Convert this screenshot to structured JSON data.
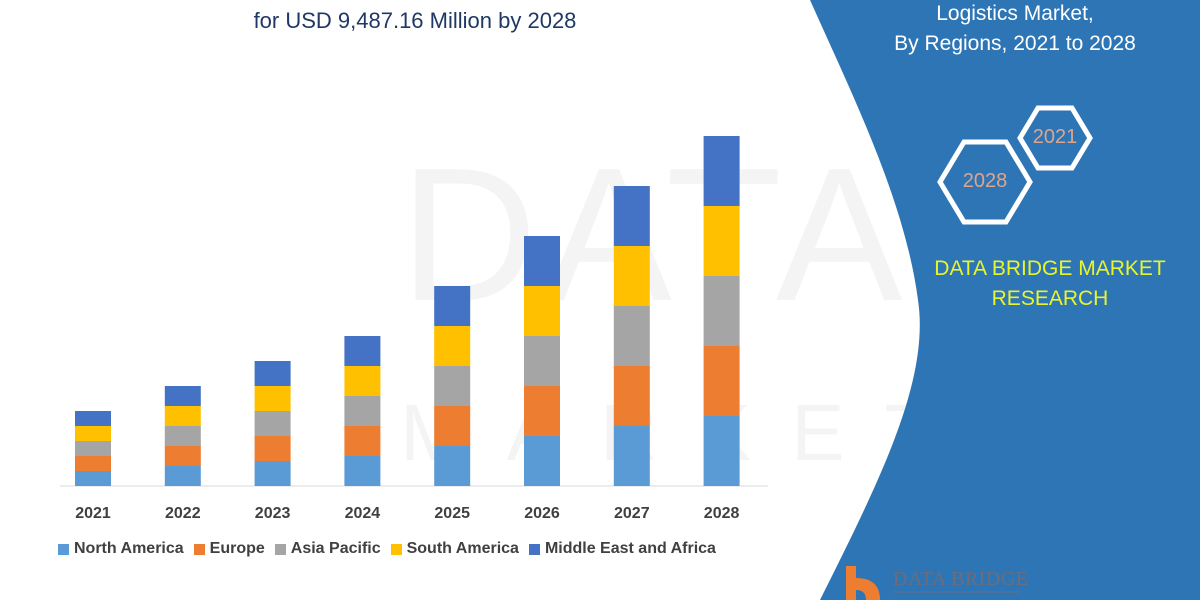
{
  "header": {
    "title_line2": "for USD 9,487.16 Million by 2028"
  },
  "side_panel": {
    "title_line1": "Logistics Market,",
    "title_line2": "By Regions, 2021 to 2028",
    "hex_1": "2021",
    "hex_2": "2028",
    "brand_line1": "DATA BRIDGE MARKET",
    "brand_line2": "RESEARCH",
    "logo_text": "DATA BRIDGE",
    "panel_color": "#2E75B6"
  },
  "chart_data": {
    "type": "bar",
    "stacked": true,
    "categories": [
      "2021",
      "2022",
      "2023",
      "2024",
      "2025",
      "2026",
      "2027",
      "2028"
    ],
    "series": [
      {
        "name": "North America",
        "color": "#5B9BD5",
        "values": [
          15,
          20,
          25,
          30,
          40,
          50,
          60,
          70
        ]
      },
      {
        "name": "Europe",
        "color": "#ED7D31",
        "values": [
          15,
          20,
          25,
          30,
          40,
          50,
          60,
          70
        ]
      },
      {
        "name": "Asia Pacific",
        "color": "#A5A5A5",
        "values": [
          15,
          20,
          25,
          30,
          40,
          50,
          60,
          70
        ]
      },
      {
        "name": "South America",
        "color": "#FFC000",
        "values": [
          15,
          20,
          25,
          30,
          40,
          50,
          60,
          70
        ]
      },
      {
        "name": "Middle East and Africa",
        "color": "#4472C4",
        "values": [
          15,
          20,
          25,
          30,
          40,
          50,
          60,
          70
        ]
      }
    ],
    "y_axis_shown": false,
    "grid": false,
    "legend_position": "bottom"
  }
}
